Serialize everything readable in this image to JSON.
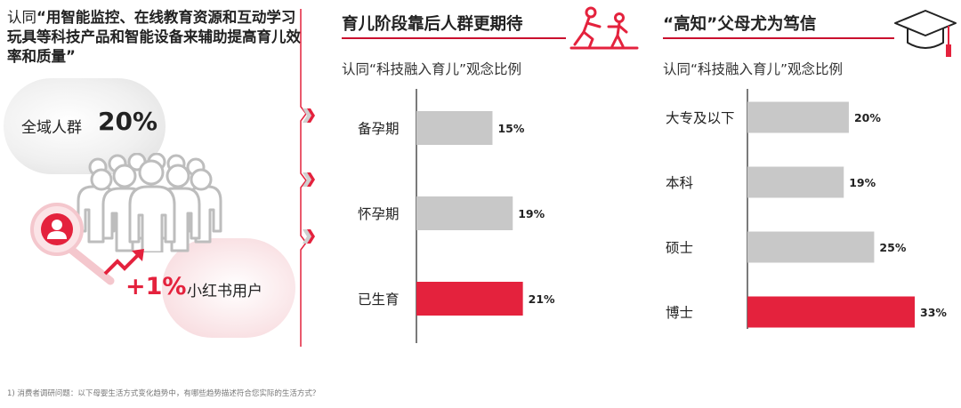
{
  "left_panel": {
    "intro_lead": "认同",
    "intro_quote": "“用智能监控、在线教育资源和互动学习玩具等科技产品和智能设备来辅助提高育儿效率和质量”",
    "all_users_label": "全域人群",
    "all_users_value": "20%",
    "delta_value": "+1%",
    "xhs_label": "小红书用户"
  },
  "panel_middle": {
    "title": "育儿阶段靠后人群更期待",
    "subtitle": "认同“科技融入育儿”观念比例"
  },
  "panel_right": {
    "title": "“高知”父母尤为笃信",
    "subtitle": "认同“科技融入育儿”观念比例"
  },
  "footnote": "1) 消费者调研问题：以下母婴生活方式变化趋势中，有哪些趋势描述符合您实际的生活方式？",
  "colors": {
    "accent": "#e4223d",
    "gray_bar": "#c8c8c8",
    "rule": "#c9102e"
  },
  "icons": [
    "user-crowd-icon",
    "magnifier-user-icon",
    "trend-up-arrow-icon",
    "parent-child-icon",
    "graduation-cap-icon",
    "chevron-right-icon"
  ],
  "chart_data": [
    {
      "type": "bar",
      "orientation": "horizontal",
      "categories": [
        "备孕期",
        "怀孕期",
        "已生育"
      ],
      "values": [
        15,
        19,
        21
      ],
      "value_labels": [
        "15%",
        "19%",
        "21%"
      ],
      "highlight": [
        false,
        false,
        true
      ],
      "xlim": [
        0,
        33
      ]
    },
    {
      "type": "bar",
      "orientation": "horizontal",
      "categories": [
        "大专及以下",
        "本科",
        "硕士",
        "博士"
      ],
      "values": [
        20,
        19,
        25,
        33
      ],
      "value_labels": [
        "20%",
        "19%",
        "25%",
        "33%"
      ],
      "highlight": [
        false,
        false,
        false,
        true
      ],
      "xlim": [
        0,
        33
      ]
    }
  ]
}
